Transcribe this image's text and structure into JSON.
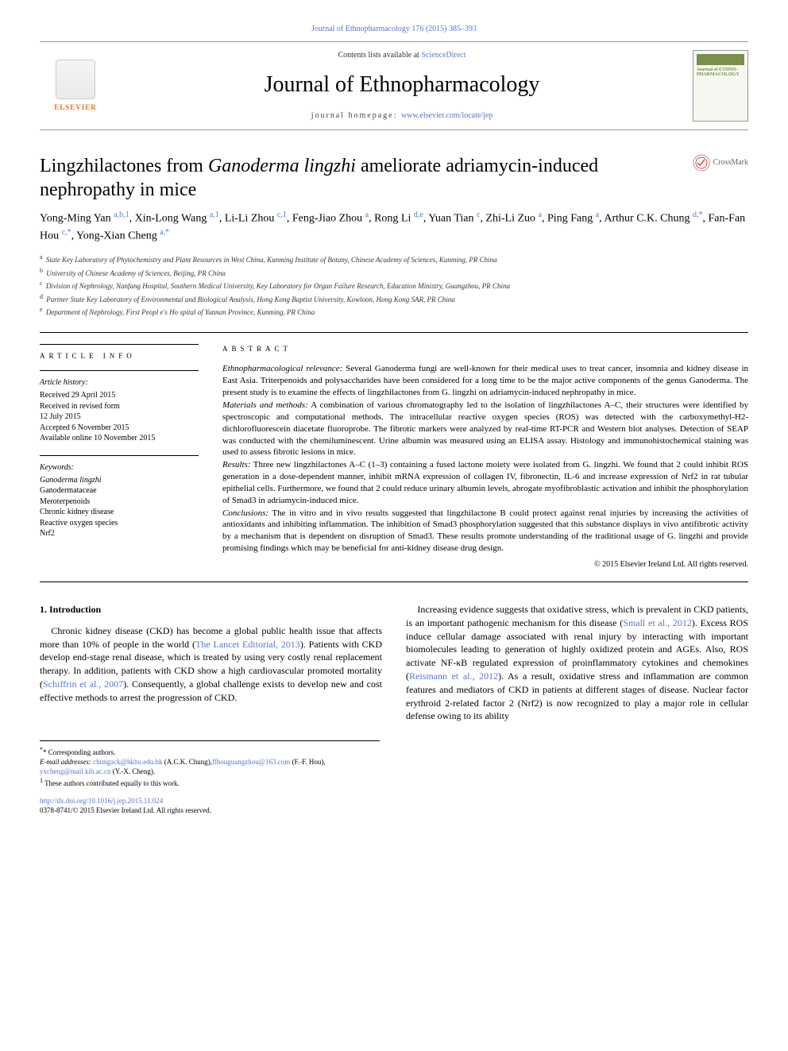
{
  "header": {
    "top_link": "Journal of Ethnopharmacology 176 (2015) 385–393",
    "contents_line_prefix": "Contents lists available at ",
    "contents_line_link": "ScienceDirect",
    "journal_name": "Journal of Ethnopharmacology",
    "homepage_prefix": "journal homepage: ",
    "homepage_link": "www.elsevier.com/locate/jep",
    "elsevier_label": "ELSEVIER",
    "cover_text": "Journal of ETHNO-PHARMACOLOGY"
  },
  "crossmark": {
    "label": "CrossMark"
  },
  "title": {
    "pre": "Lingzhilactones from ",
    "italic": "Ganoderma lingzhi",
    "post": " ameliorate adriamycin-induced nephropathy in mice"
  },
  "authors_html": "Yong-Ming Yan <sup>a,b,1</sup>, Xin-Long Wang <sup>a,1</sup>, Li-Li Zhou <sup>c,1</sup>, Feng-Jiao Zhou <sup>a</sup>, Rong Li <sup>d,e</sup>, Yuan Tian <sup>c</sup>, Zhi-Li Zuo <sup>a</sup>, Ping Fang <sup>a</sup>, Arthur C.K. Chung <sup>d,*</sup>, Fan-Fan Hou <sup>c,*</sup>, Yong-Xian Cheng <sup>a,*</sup>",
  "affiliations": [
    {
      "sup": "a",
      "text": "State Key Laboratory of Phytochemistry and Plant Resources in West China, Kunming Institute of Botany, Chinese Academy of Sciences, Kunming, PR China"
    },
    {
      "sup": "b",
      "text": "University of Chinese Academy of Sciences, Beijing, PR China"
    },
    {
      "sup": "c",
      "text": "Division of Nephrology, Nanfang Hospital, Southern Medical University, Key Laboratory for Organ Failure Research, Education Ministry, Guangzhou, PR China"
    },
    {
      "sup": "d",
      "text": "Partner State Key Laboratory of Environmental and Biological Analysis, Hong Kong Baptist University, Kowloon, Hong Kong SAR, PR China"
    },
    {
      "sup": "e",
      "text": "Department of Nephrology, First Peopl e's Ho spital of Yunnan Province, Kunming, PR China"
    }
  ],
  "article_info": {
    "heading": "ARTICLE INFO",
    "history_label": "Article history:",
    "history": [
      "Received 29 April 2015",
      "Received in revised form",
      "12 July 2015",
      "Accepted 6 November 2015",
      "Available online 10 November 2015"
    ],
    "keywords_label": "Keywords:",
    "keywords": [
      "Ganoderma lingzhi",
      "Ganodermataceae",
      "Meroterpenoids",
      "Chronic kidney disease",
      "Reactive oxygen species",
      "Nrf2"
    ]
  },
  "abstract": {
    "heading": "ABSTRACT",
    "paragraphs": [
      {
        "lead": "Ethnopharmacological relevance:",
        "text": " Several Ganoderma fungi are well-known for their medical uses to treat cancer, insomnia and kidney disease in East Asia. Triterpenoids and polysaccharides have been considered for a long time to be the major active components of the genus Ganoderma. The present study is to examine the effects of lingzhilactones from G. lingzhi on adriamycin-induced nephropathy in mice."
      },
      {
        "lead": "Materials and methods:",
        "text": " A combination of various chromatography led to the isolation of lingzhilactones A–C, their structures were identified by spectroscopic and computational methods. The intracellular reactive oxygen species (ROS) was detected with the carboxymethyl-H2-dichlorofluorescein diacetate fluoroprobe. The fibrotic markers were analyzed by real-time RT-PCR and Western blot analyses. Detection of SEAP was conducted with the chemiluminescent. Urine albumin was measured using an ELISA assay. Histology and immunohistochemical staining was used to assess fibrotic lesions in mice."
      },
      {
        "lead": "Results:",
        "text": " Three new lingzhilactones A–C (1–3) containing a fused lactone moiety were isolated from G. lingzhi. We found that 2 could inhibit ROS generation in a dose-dependent manner, inhibit mRNA expression of collagen IV, fibronectin, IL-6 and increase expression of Nrf2 in rat tubular epithelial cells. Furthermore, we found that 2 could reduce urinary albumin levels, abrogate myofibroblastic activation and inhibit the phosphorylation of Smad3 in adriamycin-induced mice."
      },
      {
        "lead": "Conclusions:",
        "text": " The in vitro and in vivo results suggested that lingzhilactone B could protect against renal injuries by increasing the activities of antioxidants and inhibiting inflammation. The inhibition of Smad3 phosphorylation suggested that this substance displays in vivo antifibrotic activity by a mechanism that is dependent on disruption of Smad3. These results promote understanding of the traditional usage of G. lingzhi and provide promising findings which may be beneficial for anti-kidney disease drug design."
      }
    ],
    "copyright": "© 2015 Elsevier Ireland Ltd. All rights reserved."
  },
  "body": {
    "section_number": "1.",
    "section_title": "Introduction",
    "p1_a": "Chronic kidney disease (CKD) has become a global public health issue that affects more than 10% of people in the world (",
    "p1_link1": "The Lancet Editorial, 2013",
    "p1_b": "). Patients with CKD develop end-stage renal disease, which is treated by using very costly renal replacement therapy. In addition, patients with CKD show a high cardiovascular promoted mortality (",
    "p1_link2": "Schiffrin et al., 2007",
    "p1_c": "). Consequently, a global challenge exists to develop new and cost effective methods to arrest the progression of CKD.",
    "p2_a": "Increasing evidence suggests that oxidative stress, which is prevalent in CKD patients, is an important pathogenic mechanism for this disease (",
    "p2_link1": "Small et al., 2012",
    "p2_b": "). Excess ROS induce cellular damage associated with renal injury by interacting with important biomolecules leading to generation of highly oxidized protein and AGEs. Also, ROS activate NF-κB regulated expression of proinflammatory cytokines and chemokines (",
    "p2_link2": "Reismann et al., 2012",
    "p2_c": "). As a result, oxidative stress and inflammation are common features and mediators of CKD in patients at different stages of disease. Nuclear factor erythroid 2-related factor 2 (Nrf2) is now recognized to play a major role in cellular defense owing to its ability"
  },
  "footnotes": {
    "corresponding": "* Corresponding authors.",
    "email_label": "E-mail addresses: ",
    "emails": [
      {
        "addr": "chungack@hkbu.edu.hk",
        "who": " (A.C.K. Chung),"
      },
      {
        "addr": "ffhouguangzhou@163.com",
        "who": " (F.-F. Hou), "
      },
      {
        "addr": "yxcheng@mail.kib.ac.cn",
        "who": " (Y.-X. Cheng)."
      }
    ],
    "equal": "These authors contributed equally to this work.",
    "equal_sup": "1"
  },
  "doi": {
    "link": "http://dx.doi.org/10.1016/j.jep.2015.11.024",
    "issn_line": "0378-8741/© 2015 Elsevier Ireland Ltd. All rights reserved."
  },
  "colors": {
    "link": "#5577cc",
    "elsevier_orange": "#e9711c",
    "cover_green": "#7a8f4a",
    "hairline": "#000000"
  }
}
